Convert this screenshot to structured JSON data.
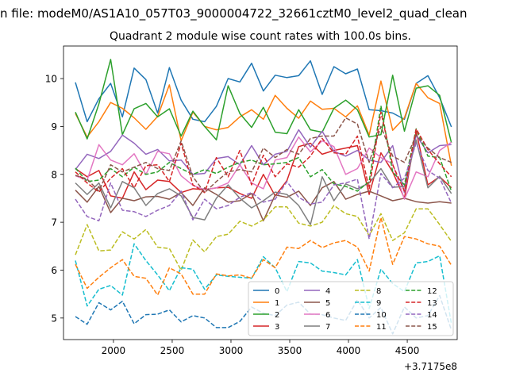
{
  "figure": {
    "suptitle": "n file: modeM0/AS1A10_057T03_9000004722_32661cztM0_level2_quad_clean",
    "title": "Quadrant 2 module wise count rates with 100.0s bins.",
    "offset_label": "+3.7175e8"
  },
  "chart_data": {
    "type": "line",
    "title": "Quadrant 2 module wise count rates with 100.0s bins.",
    "xlabel": "",
    "ylabel": "",
    "x_offset": 371750000,
    "xlim": [
      1575,
      4925
    ],
    "ylim": [
      4.55,
      10.68
    ],
    "x_ticks": [
      2000,
      2500,
      3000,
      3500,
      4000,
      4500,
      5000
    ],
    "y_ticks": [
      5,
      6,
      7,
      8,
      9,
      10
    ],
    "legend_position": "lower-right",
    "legend_columns": 4,
    "grid": false,
    "x": [
      1676,
      1776,
      1876,
      1976,
      2076,
      2176,
      2276,
      2376,
      2476,
      2576,
      2676,
      2776,
      2876,
      2976,
      3076,
      3176,
      3276,
      3376,
      3476,
      3576,
      3676,
      3776,
      3876,
      3976,
      4076,
      4176,
      4276,
      4376,
      4476,
      4576,
      4676,
      4776,
      4876
    ],
    "series": [
      {
        "name": "0",
        "color": "#1f77b4",
        "style": "solid",
        "values": [
          9.92,
          9.1,
          9.58,
          9.9,
          9.2,
          10.22,
          9.98,
          9.28,
          10.23,
          9.55,
          9.15,
          9.1,
          9.42,
          10.0,
          9.93,
          10.32,
          9.74,
          10.07,
          10.02,
          10.06,
          10.37,
          9.67,
          10.25,
          10.1,
          10.2,
          9.35,
          9.33,
          9.28,
          9.15,
          9.9,
          10.06,
          9.6,
          8.99
        ]
      },
      {
        "name": "1",
        "color": "#ff7f0e",
        "style": "solid",
        "values": [
          9.27,
          8.78,
          9.1,
          9.5,
          9.38,
          9.18,
          8.94,
          9.21,
          9.87,
          8.7,
          9.3,
          9.0,
          8.93,
          8.98,
          9.2,
          9.35,
          9.15,
          9.65,
          9.38,
          9.17,
          9.53,
          9.36,
          9.38,
          9.2,
          9.43,
          8.82,
          9.95,
          8.92,
          9.18,
          9.9,
          9.6,
          9.48,
          8.18
        ]
      },
      {
        "name": "2",
        "color": "#2ca02c",
        "style": "solid",
        "values": [
          9.3,
          8.74,
          9.47,
          10.4,
          8.83,
          9.37,
          9.48,
          9.2,
          9.37,
          8.8,
          9.32,
          9.0,
          8.72,
          9.85,
          9.27,
          8.98,
          9.4,
          8.88,
          8.85,
          9.35,
          8.93,
          8.88,
          9.38,
          9.55,
          9.35,
          8.78,
          8.83,
          10.07,
          8.9,
          9.8,
          9.85,
          9.65,
          8.66
        ]
      },
      {
        "name": "3",
        "color": "#d62728",
        "style": "solid",
        "values": [
          8.12,
          7.95,
          8.08,
          7.55,
          7.5,
          8.05,
          7.68,
          7.88,
          7.85,
          7.62,
          7.7,
          7.68,
          7.72,
          7.73,
          7.6,
          7.5,
          8.0,
          7.55,
          7.87,
          8.58,
          8.65,
          8.42,
          8.5,
          8.55,
          8.6,
          7.58,
          8.45,
          8.05,
          7.5,
          8.9,
          7.78,
          7.95,
          7.72
        ]
      },
      {
        "name": "4",
        "color": "#9467bd",
        "style": "solid",
        "values": [
          8.1,
          8.42,
          8.33,
          8.48,
          8.82,
          8.65,
          8.42,
          8.52,
          8.28,
          8.3,
          8.0,
          8.02,
          8.33,
          8.37,
          8.2,
          8.6,
          8.2,
          8.42,
          8.48,
          8.93,
          8.57,
          8.9,
          8.48,
          8.38,
          8.5,
          8.3,
          8.25,
          8.6,
          7.62,
          8.82,
          8.45,
          8.6,
          8.62
        ]
      },
      {
        "name": "5",
        "color": "#8c564b",
        "style": "solid",
        "values": [
          7.67,
          7.42,
          7.75,
          7.2,
          7.5,
          7.45,
          7.53,
          7.54,
          7.48,
          7.62,
          7.35,
          7.72,
          7.58,
          7.42,
          7.45,
          7.6,
          7.03,
          7.57,
          7.52,
          7.65,
          7.35,
          7.72,
          7.85,
          7.48,
          7.58,
          7.65,
          7.55,
          7.45,
          7.5,
          7.43,
          7.4,
          7.43,
          7.4
        ]
      },
      {
        "name": "6",
        "color": "#e377c2",
        "style": "solid",
        "values": [
          7.97,
          7.88,
          8.62,
          8.3,
          8.2,
          8.43,
          8.0,
          8.48,
          8.43,
          7.97,
          7.77,
          7.68,
          7.72,
          7.82,
          8.2,
          7.82,
          7.7,
          8.3,
          8.35,
          8.78,
          8.47,
          8.7,
          8.58,
          8.0,
          8.12,
          8.55,
          8.35,
          8.22,
          7.48,
          8.05,
          7.95,
          8.5,
          8.67
        ]
      },
      {
        "name": "7",
        "color": "#7f7f7f",
        "style": "solid",
        "values": [
          7.82,
          7.58,
          7.82,
          7.3,
          7.85,
          7.72,
          7.35,
          7.6,
          7.7,
          7.55,
          7.1,
          7.05,
          7.5,
          7.78,
          7.5,
          7.3,
          7.45,
          7.63,
          7.58,
          7.35,
          6.95,
          7.95,
          7.45,
          7.8,
          7.7,
          7.82,
          8.12,
          7.73,
          7.75,
          8.72,
          7.72,
          7.96,
          7.6
        ]
      },
      {
        "name": "8",
        "color": "#bcbd22",
        "style": "dashed",
        "values": [
          6.32,
          6.95,
          6.4,
          6.42,
          6.8,
          6.65,
          6.85,
          6.48,
          6.45,
          6.0,
          6.63,
          6.38,
          6.7,
          6.75,
          7.02,
          6.92,
          7.05,
          7.32,
          7.32,
          6.98,
          6.92,
          7.0,
          7.35,
          7.18,
          7.12,
          6.72,
          7.18,
          6.62,
          6.78,
          7.28,
          7.28,
          6.95,
          6.6
        ]
      },
      {
        "name": "9",
        "color": "#17becf",
        "style": "dashed",
        "values": [
          6.2,
          5.25,
          5.6,
          5.68,
          5.48,
          6.55,
          6.2,
          5.9,
          5.57,
          6.05,
          6.02,
          5.6,
          5.9,
          5.87,
          5.85,
          5.83,
          6.28,
          6.05,
          5.55,
          6.18,
          6.15,
          5.98,
          5.95,
          5.9,
          6.22,
          5.2,
          6.02,
          5.72,
          5.55,
          6.15,
          6.18,
          6.3,
          4.88
        ]
      },
      {
        "name": "10",
        "color": "#1f77b4",
        "style": "dashed",
        "values": [
          5.03,
          4.87,
          5.32,
          5.17,
          5.35,
          4.88,
          5.07,
          5.08,
          5.17,
          4.92,
          5.05,
          5.0,
          4.8,
          4.8,
          4.93,
          5.23,
          5.1,
          5.05,
          5.27,
          5.33,
          5.08,
          5.07,
          5.0,
          4.95,
          5.38,
          5.0,
          5.22,
          4.67,
          5.23,
          5.0,
          5.05,
          5.47,
          4.75
        ]
      },
      {
        "name": "11",
        "color": "#ff7f0e",
        "style": "dashed",
        "values": [
          6.12,
          5.62,
          5.85,
          6.05,
          6.22,
          5.87,
          5.83,
          5.48,
          6.05,
          5.92,
          5.5,
          5.5,
          5.92,
          5.88,
          5.9,
          5.83,
          6.22,
          6.05,
          6.48,
          6.45,
          6.62,
          6.47,
          6.57,
          6.62,
          6.48,
          5.98,
          7.1,
          6.12,
          6.7,
          6.65,
          6.55,
          6.5,
          6.1
        ]
      },
      {
        "name": "12",
        "color": "#2ca02c",
        "style": "dashed",
        "values": [
          8.13,
          7.85,
          7.88,
          8.12,
          7.95,
          8.15,
          8.0,
          8.05,
          8.25,
          8.12,
          8.0,
          8.1,
          8.02,
          8.15,
          8.25,
          8.3,
          8.2,
          8.22,
          8.25,
          8.35,
          7.95,
          8.1,
          7.8,
          7.75,
          7.65,
          7.85,
          9.43,
          8.05,
          7.78,
          8.95,
          8.38,
          8.35,
          7.65
        ]
      },
      {
        "name": "13",
        "color": "#d62728",
        "style": "dashed",
        "values": [
          8.05,
          7.82,
          7.63,
          7.92,
          8.12,
          7.72,
          8.18,
          8.2,
          7.85,
          8.65,
          7.78,
          7.62,
          8.35,
          7.95,
          8.5,
          7.78,
          8.4,
          7.95,
          8.22,
          8.15,
          8.38,
          8.75,
          8.45,
          8.42,
          8.8,
          7.7,
          9.3,
          8.2,
          7.65,
          8.95,
          8.52,
          8.22,
          7.95
        ]
      },
      {
        "name": "14",
        "color": "#9467bd",
        "style": "dashed",
        "values": [
          7.48,
          7.12,
          7.03,
          7.82,
          7.25,
          7.22,
          7.12,
          7.25,
          7.35,
          7.65,
          7.05,
          7.48,
          7.28,
          7.35,
          7.52,
          7.62,
          7.42,
          7.48,
          7.85,
          7.52,
          7.38,
          7.42,
          7.78,
          7.82,
          7.9,
          6.65,
          8.02,
          7.72,
          7.92,
          8.65,
          8.08,
          7.92,
          7.4
        ]
      },
      {
        "name": "15",
        "color": "#8c564b",
        "style": "dashed",
        "values": [
          7.98,
          7.9,
          7.65,
          8.2,
          8.05,
          8.15,
          8.25,
          8.12,
          8.08,
          8.7,
          7.95,
          7.62,
          7.85,
          8.05,
          8.1,
          8.05,
          8.55,
          8.35,
          8.52,
          8.42,
          8.75,
          8.8,
          8.8,
          9.18,
          9.05,
          8.25,
          9.0,
          8.38,
          8.25,
          8.82,
          8.55,
          8.35,
          8.25
        ]
      }
    ]
  }
}
